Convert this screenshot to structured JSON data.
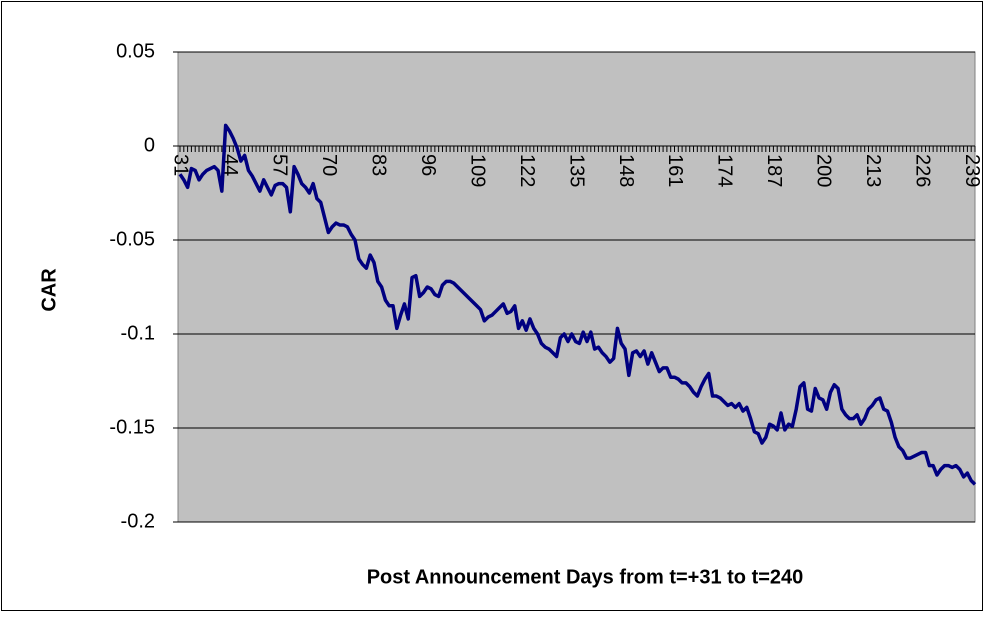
{
  "chart_data": {
    "type": "line",
    "xlabel": "Post Announcement Days from t=+31 to t=240",
    "ylabel": "CAR",
    "x": [
      31,
      32,
      33,
      34,
      35,
      36,
      37,
      38,
      39,
      40,
      41,
      42,
      43,
      44,
      45,
      46,
      47,
      48,
      49,
      50,
      51,
      52,
      53,
      54,
      55,
      56,
      57,
      58,
      59,
      60,
      61,
      62,
      63,
      64,
      65,
      66,
      67,
      68,
      69,
      70,
      71,
      72,
      73,
      74,
      75,
      76,
      77,
      78,
      79,
      80,
      81,
      82,
      83,
      84,
      85,
      86,
      87,
      88,
      89,
      90,
      91,
      92,
      93,
      94,
      95,
      96,
      97,
      98,
      99,
      100,
      101,
      102,
      103,
      104,
      105,
      106,
      107,
      108,
      109,
      110,
      111,
      112,
      113,
      114,
      115,
      116,
      117,
      118,
      119,
      120,
      121,
      122,
      123,
      124,
      125,
      126,
      127,
      128,
      129,
      130,
      131,
      132,
      133,
      134,
      135,
      136,
      137,
      138,
      139,
      140,
      141,
      142,
      143,
      144,
      145,
      146,
      147,
      148,
      149,
      150,
      151,
      152,
      153,
      154,
      155,
      156,
      157,
      158,
      159,
      160,
      161,
      162,
      163,
      164,
      165,
      166,
      167,
      168,
      169,
      170,
      171,
      172,
      173,
      174,
      175,
      176,
      177,
      178,
      179,
      180,
      181,
      182,
      183,
      184,
      185,
      186,
      187,
      188,
      189,
      190,
      191,
      192,
      193,
      194,
      195,
      196,
      197,
      198,
      199,
      200,
      201,
      202,
      203,
      204,
      205,
      206,
      207,
      208,
      209,
      210,
      211,
      212,
      213,
      214,
      215,
      216,
      217,
      218,
      219,
      220,
      221,
      222,
      223,
      224,
      225,
      226,
      227,
      228,
      229,
      230,
      231,
      232,
      233,
      234,
      235,
      236,
      237,
      238,
      239,
      240
    ],
    "values": [
      -0.015,
      -0.018,
      -0.022,
      -0.012,
      -0.013,
      -0.018,
      -0.015,
      -0.013,
      -0.012,
      -0.011,
      -0.013,
      -0.024,
      0.011,
      0.008,
      0.004,
      -0.001,
      -0.008,
      -0.005,
      -0.013,
      -0.016,
      -0.02,
      -0.024,
      -0.018,
      -0.022,
      -0.026,
      -0.021,
      -0.02,
      -0.02,
      -0.022,
      -0.035,
      -0.011,
      -0.015,
      -0.02,
      -0.022,
      -0.025,
      -0.02,
      -0.028,
      -0.03,
      -0.038,
      -0.046,
      -0.043,
      -0.041,
      -0.042,
      -0.042,
      -0.043,
      -0.047,
      -0.05,
      -0.06,
      -0.063,
      -0.065,
      -0.058,
      -0.062,
      -0.072,
      -0.075,
      -0.082,
      -0.085,
      -0.085,
      -0.097,
      -0.09,
      -0.084,
      -0.092,
      -0.07,
      -0.069,
      -0.08,
      -0.078,
      -0.075,
      -0.076,
      -0.079,
      -0.08,
      -0.074,
      -0.072,
      -0.072,
      -0.073,
      -0.075,
      -0.077,
      -0.079,
      -0.081,
      -0.083,
      -0.085,
      -0.087,
      -0.093,
      -0.091,
      -0.09,
      -0.088,
      -0.086,
      -0.084,
      -0.089,
      -0.088,
      -0.085,
      -0.097,
      -0.093,
      -0.098,
      -0.092,
      -0.097,
      -0.1,
      -0.105,
      -0.107,
      -0.108,
      -0.11,
      -0.112,
      -0.102,
      -0.1,
      -0.104,
      -0.1,
      -0.104,
      -0.105,
      -0.099,
      -0.104,
      -0.099,
      -0.108,
      -0.107,
      -0.11,
      -0.112,
      -0.115,
      -0.113,
      -0.097,
      -0.105,
      -0.108,
      -0.122,
      -0.11,
      -0.109,
      -0.112,
      -0.109,
      -0.116,
      -0.11,
      -0.115,
      -0.12,
      -0.118,
      -0.118,
      -0.123,
      -0.123,
      -0.124,
      -0.126,
      -0.126,
      -0.128,
      -0.131,
      -0.133,
      -0.128,
      -0.124,
      -0.121,
      -0.133,
      -0.133,
      -0.134,
      -0.136,
      -0.138,
      -0.137,
      -0.139,
      -0.137,
      -0.141,
      -0.139,
      -0.145,
      -0.152,
      -0.153,
      -0.158,
      -0.155,
      -0.148,
      -0.149,
      -0.151,
      -0.142,
      -0.151,
      -0.148,
      -0.149,
      -0.14,
      -0.128,
      -0.126,
      -0.14,
      -0.141,
      -0.129,
      -0.134,
      -0.135,
      -0.14,
      -0.131,
      -0.127,
      -0.129,
      -0.14,
      -0.143,
      -0.145,
      -0.145,
      -0.143,
      -0.148,
      -0.145,
      -0.14,
      -0.138,
      -0.135,
      -0.134,
      -0.14,
      -0.141,
      -0.147,
      -0.155,
      -0.16,
      -0.162,
      -0.166,
      -0.166,
      -0.165,
      -0.164,
      -0.163,
      -0.163,
      -0.17,
      -0.17,
      -0.175,
      -0.172,
      -0.17,
      -0.17,
      -0.171,
      -0.17,
      -0.172,
      -0.176,
      -0.174,
      -0.178,
      -0.18
    ],
    "color": "#000080",
    "xlim": [
      31,
      240
    ],
    "xticks": [
      31,
      44,
      57,
      70,
      83,
      96,
      109,
      122,
      135,
      148,
      161,
      174,
      187,
      200,
      213,
      226,
      239
    ],
    "ylim": [
      -0.2,
      0.05
    ],
    "yticks": [
      0.05,
      0,
      -0.05,
      -0.1,
      -0.15,
      -0.2
    ],
    "grid": true
  }
}
